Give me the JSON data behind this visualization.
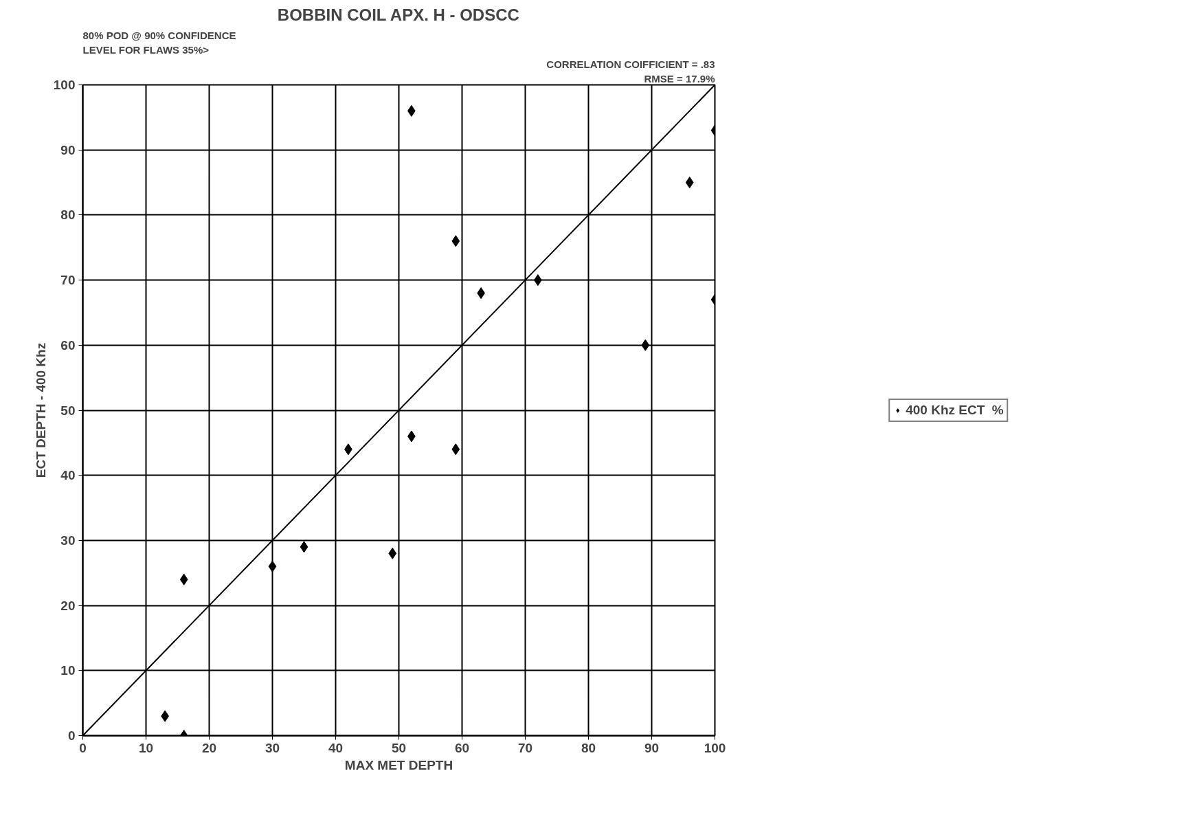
{
  "chart_data": {
    "type": "scatter",
    "title": "BOBBIN COIL APX. H - ODSCC",
    "xlabel": "MAX MET DEPTH",
    "ylabel": "ECT DEPTH - 400 Khz",
    "annotations": [
      "80% POD @ 90% CONFIDENCE",
      "LEVEL FOR FLAWS 35%>",
      "CORRELATION COIFFICIENT = .83",
      "RMSE = 17.9%"
    ],
    "xlim": [
      0,
      100
    ],
    "ylim": [
      0,
      100
    ],
    "xticks": [
      0,
      10,
      20,
      30,
      40,
      50,
      60,
      70,
      80,
      90,
      100
    ],
    "yticks": [
      0,
      10,
      20,
      30,
      40,
      50,
      60,
      70,
      80,
      90,
      100
    ],
    "grid": true,
    "legend": "right",
    "series": [
      {
        "name": "400 Khz ECT  %",
        "color": "#000000",
        "marker": "diamond",
        "x": [
          13,
          16,
          16,
          30,
          35,
          42,
          49,
          52,
          52,
          59,
          59,
          63,
          72,
          89,
          96,
          100,
          100
        ],
        "values": [
          3,
          0,
          24,
          26,
          29,
          44,
          28,
          96,
          46,
          76,
          44,
          68,
          70,
          60,
          85,
          93,
          67
        ]
      },
      {
        "color": "#000000",
        "type": "line",
        "line_style": "solid",
        "x": [
          0,
          100
        ],
        "values": [
          0,
          100
        ]
      }
    ]
  }
}
